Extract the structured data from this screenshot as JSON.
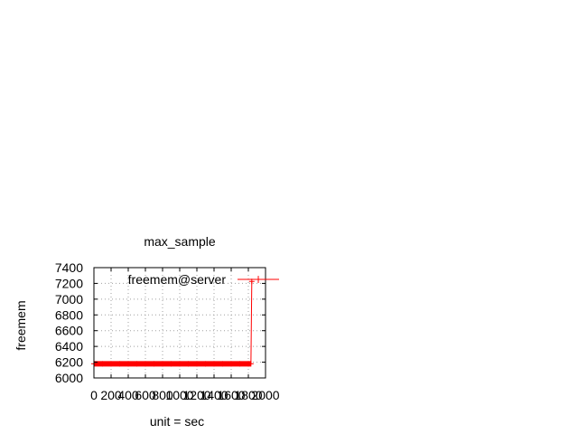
{
  "chart_data": {
    "type": "line",
    "title": "max_sample",
    "xlabel": "unit = sec",
    "ylabel": "freemem",
    "xlim": [
      0,
      2000
    ],
    "ylim": [
      6000,
      7400
    ],
    "xticks": [
      0,
      200,
      400,
      600,
      800,
      1000,
      1200,
      1400,
      1600,
      1800,
      2000
    ],
    "yticks": [
      6000,
      6200,
      6400,
      6600,
      6800,
      7000,
      7200,
      7400
    ],
    "grid": true,
    "legend": "top-right",
    "color": "#ff0000",
    "series": [
      {
        "name": "freemem@server",
        "x": [
          0,
          100,
          200,
          300,
          400,
          500,
          600,
          700,
          800,
          900,
          1000,
          1100,
          1200,
          1300,
          1400,
          1500,
          1600,
          1700,
          1800,
          1830,
          1840
        ],
        "y": [
          6180,
          6180,
          6180,
          6180,
          6180,
          6180,
          6180,
          6180,
          6180,
          6180,
          6180,
          6180,
          6180,
          6180,
          6180,
          6180,
          6180,
          6180,
          6180,
          6180,
          7225
        ]
      }
    ]
  }
}
